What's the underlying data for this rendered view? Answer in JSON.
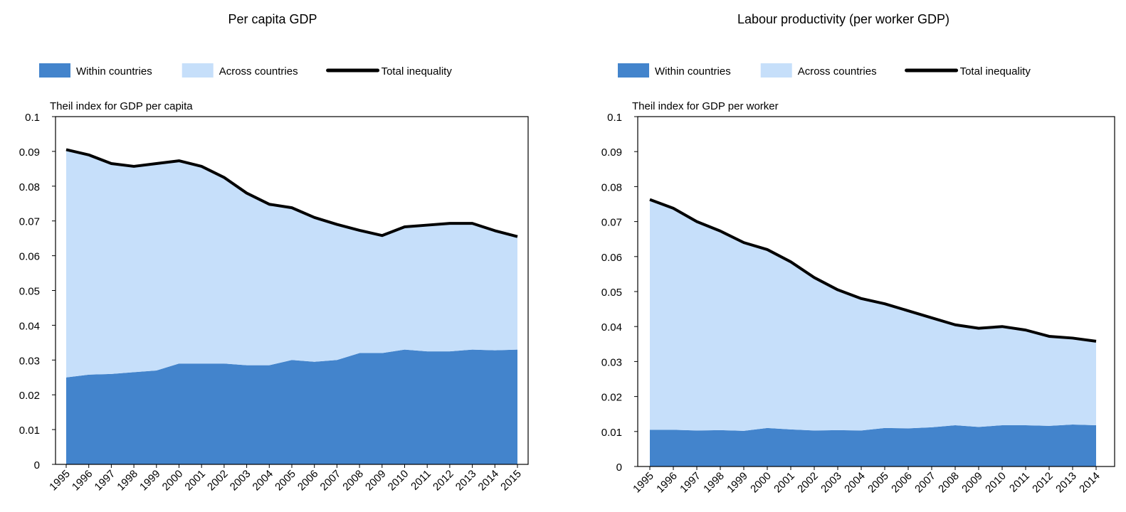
{
  "chart_data": [
    {
      "type": "stacked-area",
      "title": "Per capita GDP",
      "y_label": "Theil index for GDP per capita",
      "categories": [
        "1995",
        "1996",
        "1997",
        "1998",
        "1999",
        "2000",
        "2001",
        "2002",
        "2003",
        "2004",
        "2005",
        "2006",
        "2007",
        "2008",
        "2009",
        "2010",
        "2011",
        "2012",
        "2013",
        "2014",
        "2015"
      ],
      "series": [
        {
          "name": "Within countries",
          "color": "#4384cc",
          "kind": "area",
          "values": [
            0.025,
            0.0258,
            0.026,
            0.0265,
            0.027,
            0.029,
            0.029,
            0.029,
            0.0285,
            0.0285,
            0.03,
            0.0295,
            0.03,
            0.032,
            0.032,
            0.033,
            0.0325,
            0.0325,
            0.033,
            0.0328,
            0.033
          ]
        },
        {
          "name": "Across countries",
          "color": "#c6dffa",
          "kind": "area",
          "values": [
            0.0655,
            0.0632,
            0.0605,
            0.0592,
            0.0595,
            0.0583,
            0.0567,
            0.0535,
            0.0495,
            0.0463,
            0.0438,
            0.0415,
            0.039,
            0.0353,
            0.0338,
            0.0353,
            0.0363,
            0.0368,
            0.0363,
            0.0344,
            0.0325
          ]
        },
        {
          "name": "Total inequality",
          "color": "#000000",
          "kind": "line",
          "values": [
            0.0905,
            0.089,
            0.0865,
            0.0857,
            0.0865,
            0.0873,
            0.0857,
            0.0825,
            0.078,
            0.0748,
            0.0738,
            0.071,
            0.069,
            0.0673,
            0.0658,
            0.0683,
            0.0688,
            0.0693,
            0.0693,
            0.0672,
            0.0655
          ]
        }
      ],
      "ylim": [
        0,
        0.1
      ],
      "yticks": [
        0,
        0.01,
        0.02,
        0.03,
        0.04,
        0.05,
        0.06,
        0.07,
        0.08,
        0.09,
        0.1
      ]
    },
    {
      "type": "stacked-area",
      "title": "Labour productivity (per worker GDP)",
      "y_label": "Theil index for GDP per worker",
      "categories": [
        "1995",
        "1996",
        "1997",
        "1998",
        "1999",
        "2000",
        "2001",
        "2002",
        "2003",
        "2004",
        "2005",
        "2006",
        "2007",
        "2008",
        "2009",
        "2010",
        "2011",
        "2012",
        "2013",
        "2014"
      ],
      "series": [
        {
          "name": "Within countries",
          "color": "#4384cc",
          "kind": "area",
          "values": [
            0.0105,
            0.0105,
            0.0103,
            0.0104,
            0.0102,
            0.011,
            0.0106,
            0.0103,
            0.0104,
            0.0103,
            0.011,
            0.0109,
            0.0112,
            0.0118,
            0.0113,
            0.0118,
            0.0118,
            0.0116,
            0.012,
            0.0118
          ]
        },
        {
          "name": "Across countries",
          "color": "#c6dffa",
          "kind": "area",
          "values": [
            0.0658,
            0.0633,
            0.0597,
            0.0569,
            0.0538,
            0.051,
            0.0479,
            0.0437,
            0.0401,
            0.0377,
            0.0355,
            0.0336,
            0.0313,
            0.0287,
            0.0282,
            0.0282,
            0.0272,
            0.0256,
            0.0247,
            0.024
          ]
        },
        {
          "name": "Total inequality",
          "color": "#000000",
          "kind": "line",
          "values": [
            0.0763,
            0.0738,
            0.07,
            0.0673,
            0.064,
            0.062,
            0.0585,
            0.054,
            0.0505,
            0.048,
            0.0465,
            0.0445,
            0.0425,
            0.0405,
            0.0395,
            0.04,
            0.039,
            0.0372,
            0.0367,
            0.0358
          ]
        }
      ],
      "ylim": [
        0,
        0.1
      ],
      "yticks": [
        0,
        0.01,
        0.02,
        0.03,
        0.04,
        0.05,
        0.06,
        0.07,
        0.08,
        0.09,
        0.1
      ]
    }
  ]
}
